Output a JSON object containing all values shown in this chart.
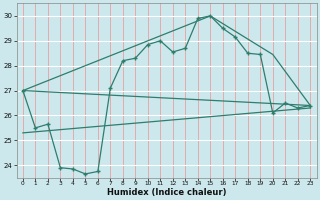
{
  "title": "",
  "xlabel": "Humidex (Indice chaleur)",
  "bg_color": "#cce8ec",
  "grid_color_h": "#ffffff",
  "grid_color_v": "#e8a0a0",
  "line_color": "#2e7d6e",
  "x_ticks": [
    0,
    1,
    2,
    3,
    4,
    5,
    6,
    7,
    8,
    9,
    10,
    11,
    12,
    13,
    14,
    15,
    16,
    17,
    18,
    19,
    20,
    21,
    22,
    23
  ],
  "y_ticks": [
    24,
    25,
    26,
    27,
    28,
    29,
    30
  ],
  "ylim": [
    23.5,
    30.5
  ],
  "xlim": [
    -0.5,
    23.5
  ],
  "line1_x": [
    0,
    1,
    2,
    3,
    4,
    5,
    6,
    7,
    8,
    9,
    10,
    11,
    12,
    13,
    14,
    15,
    16,
    17,
    18,
    19,
    20,
    21,
    22,
    23
  ],
  "line1_y": [
    27.0,
    25.5,
    25.65,
    23.9,
    23.85,
    23.65,
    23.75,
    27.1,
    28.2,
    28.3,
    28.85,
    29.0,
    28.55,
    28.7,
    29.9,
    30.0,
    29.5,
    29.15,
    28.5,
    28.45,
    26.1,
    26.5,
    26.3,
    26.4
  ],
  "line2_x": [
    0,
    23
  ],
  "line2_y": [
    27.0,
    26.4
  ],
  "line3_x": [
    0,
    15,
    20,
    23
  ],
  "line3_y": [
    27.0,
    30.0,
    28.45,
    26.4
  ],
  "line4_x": [
    0,
    23
  ],
  "line4_y": [
    25.3,
    26.3
  ]
}
